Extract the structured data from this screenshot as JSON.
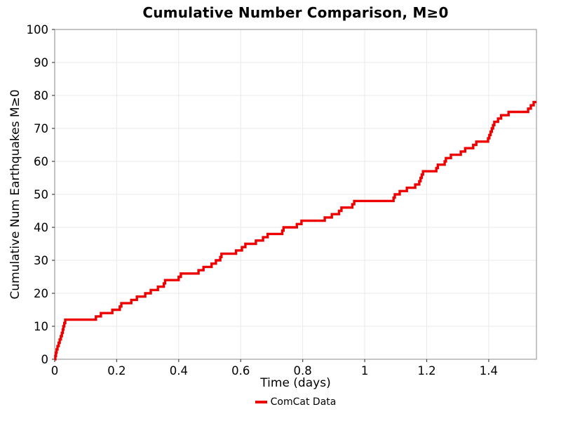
{
  "chart_data": {
    "type": "line",
    "step": "post",
    "title": "Cumulative Number Comparison, M≥0",
    "xlabel": "Time (days)",
    "ylabel": "Cumulative Num Earthquakes M≥0",
    "xlim": [
      0,
      1.554
    ],
    "ylim": [
      0,
      100
    ],
    "grid": true,
    "xticks": {
      "values": [
        0,
        0.2,
        0.4,
        0.6,
        0.8,
        1,
        1.2,
        1.4
      ],
      "labels": [
        "0",
        "0.2",
        "0.4",
        "0.6",
        "0.8",
        "1",
        "1.2",
        "1.4"
      ]
    },
    "yticks": {
      "values": [
        0,
        10,
        20,
        30,
        40,
        50,
        60,
        70,
        80,
        90,
        100
      ],
      "labels": [
        "0",
        "10",
        "20",
        "30",
        "40",
        "50",
        "60",
        "70",
        "80",
        "90",
        "100"
      ]
    },
    "legend": {
      "position": "bottom-center",
      "entries": [
        {
          "label": "ComCat Data",
          "color": "#ee0000"
        }
      ]
    },
    "colors": {
      "background": "#ffffff",
      "grid": "#e9e9e9",
      "border": "#9e9e9e",
      "tick": "#444444",
      "line": "#ee0000"
    },
    "series": [
      {
        "name": "ComCat Data",
        "color": "#ee0000",
        "points": [
          [
            0,
            0
          ],
          [
            0.002,
            1
          ],
          [
            0.004,
            2
          ],
          [
            0.006,
            3
          ],
          [
            0.009,
            4
          ],
          [
            0.013,
            5
          ],
          [
            0.016,
            6
          ],
          [
            0.02,
            7
          ],
          [
            0.023,
            8
          ],
          [
            0.026,
            9
          ],
          [
            0.028,
            10
          ],
          [
            0.031,
            11
          ],
          [
            0.034,
            12
          ],
          [
            0.133,
            13
          ],
          [
            0.149,
            14
          ],
          [
            0.186,
            15
          ],
          [
            0.21,
            16
          ],
          [
            0.215,
            17
          ],
          [
            0.247,
            18
          ],
          [
            0.265,
            19
          ],
          [
            0.292,
            20
          ],
          [
            0.31,
            21
          ],
          [
            0.333,
            22
          ],
          [
            0.352,
            23
          ],
          [
            0.356,
            24
          ],
          [
            0.4,
            25
          ],
          [
            0.407,
            26
          ],
          [
            0.464,
            27
          ],
          [
            0.48,
            28
          ],
          [
            0.506,
            29
          ],
          [
            0.52,
            30
          ],
          [
            0.534,
            31
          ],
          [
            0.538,
            32
          ],
          [
            0.585,
            33
          ],
          [
            0.604,
            34
          ],
          [
            0.615,
            35
          ],
          [
            0.649,
            36
          ],
          [
            0.672,
            37
          ],
          [
            0.687,
            38
          ],
          [
            0.734,
            39
          ],
          [
            0.738,
            40
          ],
          [
            0.781,
            41
          ],
          [
            0.796,
            42
          ],
          [
            0.871,
            43
          ],
          [
            0.894,
            44
          ],
          [
            0.917,
            45
          ],
          [
            0.925,
            46
          ],
          [
            0.96,
            47
          ],
          [
            0.966,
            48
          ],
          [
            1.093,
            49
          ],
          [
            1.097,
            50
          ],
          [
            1.113,
            51
          ],
          [
            1.136,
            52
          ],
          [
            1.163,
            53
          ],
          [
            1.176,
            54
          ],
          [
            1.18,
            55
          ],
          [
            1.184,
            56
          ],
          [
            1.188,
            57
          ],
          [
            1.231,
            58
          ],
          [
            1.236,
            59
          ],
          [
            1.258,
            60
          ],
          [
            1.262,
            61
          ],
          [
            1.278,
            62
          ],
          [
            1.31,
            63
          ],
          [
            1.324,
            64
          ],
          [
            1.35,
            65
          ],
          [
            1.36,
            66
          ],
          [
            1.398,
            67
          ],
          [
            1.402,
            68
          ],
          [
            1.406,
            69
          ],
          [
            1.41,
            70
          ],
          [
            1.414,
            71
          ],
          [
            1.418,
            72
          ],
          [
            1.43,
            73
          ],
          [
            1.44,
            74
          ],
          [
            1.464,
            75
          ],
          [
            1.527,
            76
          ],
          [
            1.536,
            77
          ],
          [
            1.545,
            78
          ],
          [
            1.554,
            78
          ]
        ]
      }
    ]
  }
}
